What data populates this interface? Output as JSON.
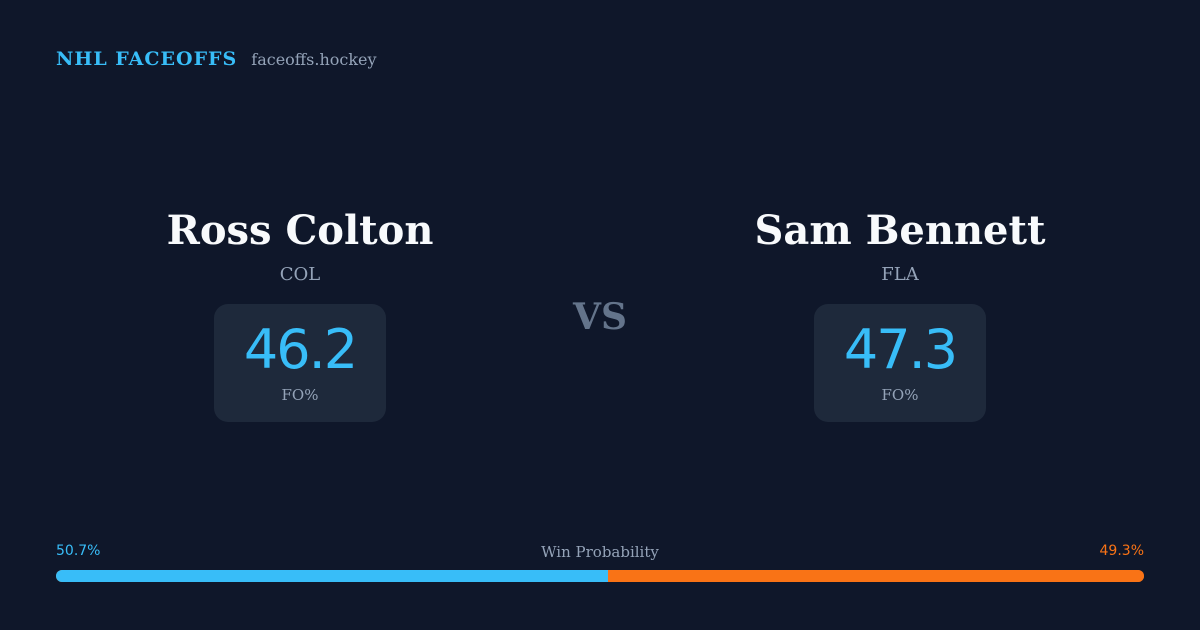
{
  "header": {
    "brand": "NHL FACEOFFS",
    "site": "faceoffs.hockey"
  },
  "players": [
    {
      "name": "Ross Colton",
      "team": "COL",
      "fo_value": "46.2",
      "fo_label": "FO%"
    },
    {
      "name": "Sam Bennett",
      "team": "FLA",
      "fo_value": "47.3",
      "fo_label": "FO%"
    }
  ],
  "vs_label": "VS",
  "win_probability": {
    "label": "Win Probability",
    "left_text": "50.7%",
    "right_text": "49.3%",
    "left_fraction": 0.507,
    "right_fraction": 0.493
  },
  "colors": {
    "background": "#0f172a",
    "card": "#1e293b",
    "accent_left": "#38bdf8",
    "accent_right": "#f97316",
    "muted": "#94a3b8",
    "vs": "#64748b"
  }
}
